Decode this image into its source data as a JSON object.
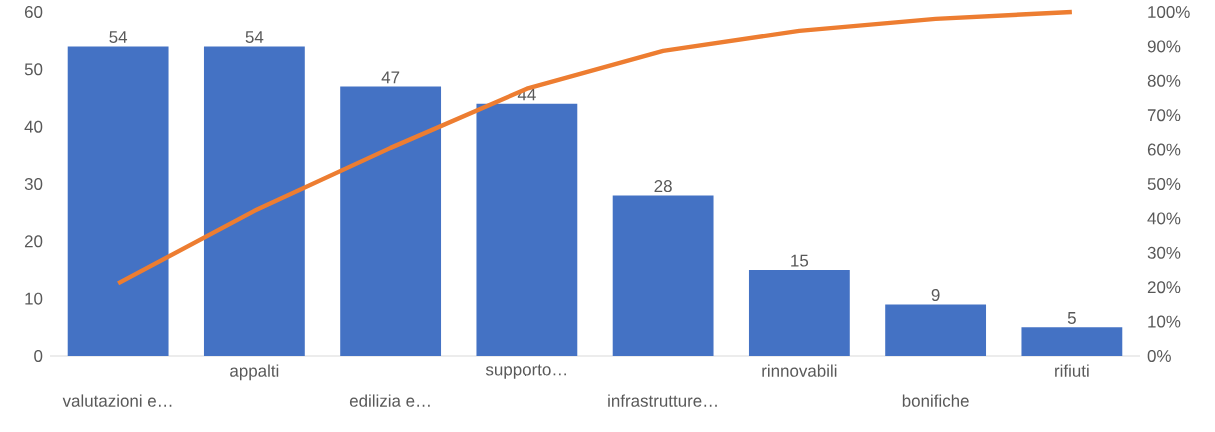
{
  "chart_data": {
    "type": "bar",
    "categories": [
      "valutazioni  e…",
      "appalti",
      "edilizia e…",
      "supporto…",
      "infrastrutture…",
      "rinnovabili",
      "bonifiche",
      "rifiuti"
    ],
    "series": [
      {
        "color": "#4472c4",
        "values": [
          54,
          54,
          47,
          44,
          28,
          15,
          9,
          5
        ],
        "value_labels": [
          "54",
          "54",
          "47",
          "44",
          "28",
          "15",
          "9",
          "5"
        ]
      },
      {
        "type": "line",
        "axis": "y2",
        "color": "#ed7d31",
        "values": [
          21.1,
          42.2,
          60.5,
          77.7,
          88.7,
          94.5,
          98.0,
          100
        ]
      }
    ],
    "ylim": [
      0,
      60
    ],
    "yticks": [
      0,
      10,
      20,
      30,
      40,
      50,
      60
    ],
    "y2lim": [
      0,
      100
    ],
    "y2ticks": [
      {
        "value": 0,
        "label": "0%"
      },
      {
        "value": 10,
        "label": "10%"
      },
      {
        "value": 20,
        "label": "20%"
      },
      {
        "value": 30,
        "label": "30%"
      },
      {
        "value": 40,
        "label": "40%"
      },
      {
        "value": 50,
        "label": "50%"
      },
      {
        "value": 60,
        "label": "60%"
      },
      {
        "value": 70,
        "label": "70%"
      },
      {
        "value": 80,
        "label": "80%"
      },
      {
        "value": 90,
        "label": "90%"
      },
      {
        "value": 100,
        "label": "100%"
      }
    ]
  }
}
